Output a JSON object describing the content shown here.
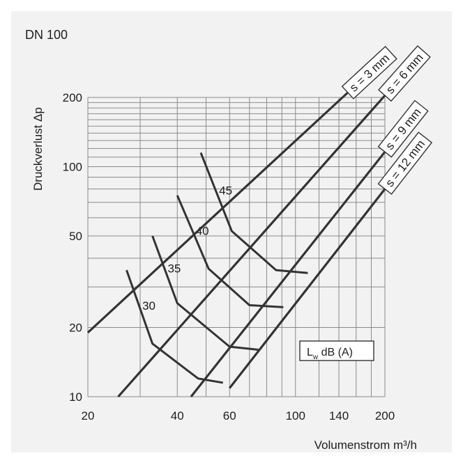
{
  "chart_data": {
    "type": "line",
    "title": "DN 100",
    "xlabel": "Volumenstrom m³/h",
    "ylabel": "Druckverlust Δp",
    "x_scale": "log",
    "y_scale": "log",
    "xlim": [
      20,
      200
    ],
    "ylim": [
      10,
      200
    ],
    "x_ticks": [
      {
        "value": 20,
        "label": "20"
      },
      {
        "value": 40,
        "label": "40"
      },
      {
        "value": 60,
        "label": "60"
      },
      {
        "value": 100,
        "label": "100"
      },
      {
        "value": 140,
        "label": "140"
      },
      {
        "value": 200,
        "label": "200"
      }
    ],
    "y_ticks": [
      {
        "value": 10,
        "label": "10"
      },
      {
        "value": 20,
        "label": "20"
      },
      {
        "value": 50,
        "label": "50"
      },
      {
        "value": 100,
        "label": "100"
      },
      {
        "value": 200,
        "label": "200"
      }
    ],
    "grid": true,
    "background_color": "#f2f2f2",
    "line_color": "#333333",
    "series": [
      {
        "name": "s = 3 mm",
        "points": [
          [
            20,
            19
          ],
          [
            150,
            210
          ]
        ]
      },
      {
        "name": "s = 6 mm",
        "points": [
          [
            25.3,
            10
          ],
          [
            200,
            204
          ]
        ]
      },
      {
        "name": "s = 9 mm",
        "points": [
          [
            44.5,
            10
          ],
          [
            200,
            116
          ]
        ]
      },
      {
        "name": "s = 12 mm",
        "points": [
          [
            60,
            10.9
          ],
          [
            200,
            80
          ]
        ]
      }
    ],
    "sound_level_curves": [
      {
        "label": "30",
        "points": [
          [
            27,
            35.5
          ],
          [
            33,
            17
          ],
          [
            47,
            12
          ],
          [
            57,
            11.5
          ]
        ]
      },
      {
        "label": "35",
        "points": [
          [
            33,
            50
          ],
          [
            40,
            25.5
          ],
          [
            60,
            16.5
          ],
          [
            75,
            16
          ]
        ]
      },
      {
        "label": "40",
        "points": [
          [
            40,
            75
          ],
          [
            51,
            36
          ],
          [
            70,
            25
          ],
          [
            91,
            24.5
          ]
        ]
      },
      {
        "label": "45",
        "points": [
          [
            48,
            115
          ],
          [
            61,
            52.5
          ],
          [
            86,
            35.5
          ],
          [
            110,
            34.5
          ]
        ]
      }
    ],
    "legend_box_label": "L",
    "legend_box_subscript": "w",
    "legend_box_suffix": " dB (A)"
  }
}
